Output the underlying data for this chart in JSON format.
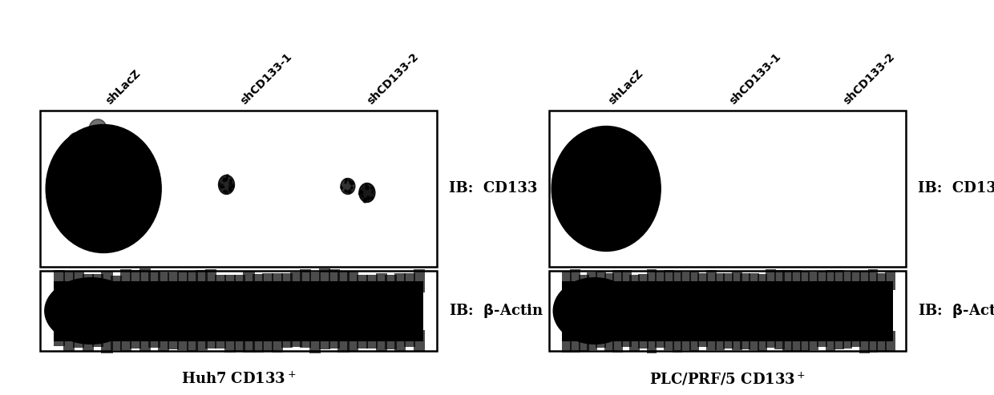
{
  "fig_width": 12.4,
  "fig_height": 4.93,
  "dpi": 100,
  "bg_color": "#ffffff",
  "left_panel": {
    "title": "Huh7 CD133$^+$",
    "labels": [
      "shLacZ",
      "shCD133-1",
      "shCD133-2"
    ],
    "label_fontsize": 10,
    "title_fontsize": 13,
    "ib_fontsize": 13
  },
  "right_panel": {
    "title": "PLC/PRF/5 CD133$^+$",
    "labels": [
      "shLacZ",
      "shCD133-1",
      "shCD133-2"
    ],
    "label_fontsize": 10,
    "title_fontsize": 13,
    "ib_fontsize": 13
  }
}
